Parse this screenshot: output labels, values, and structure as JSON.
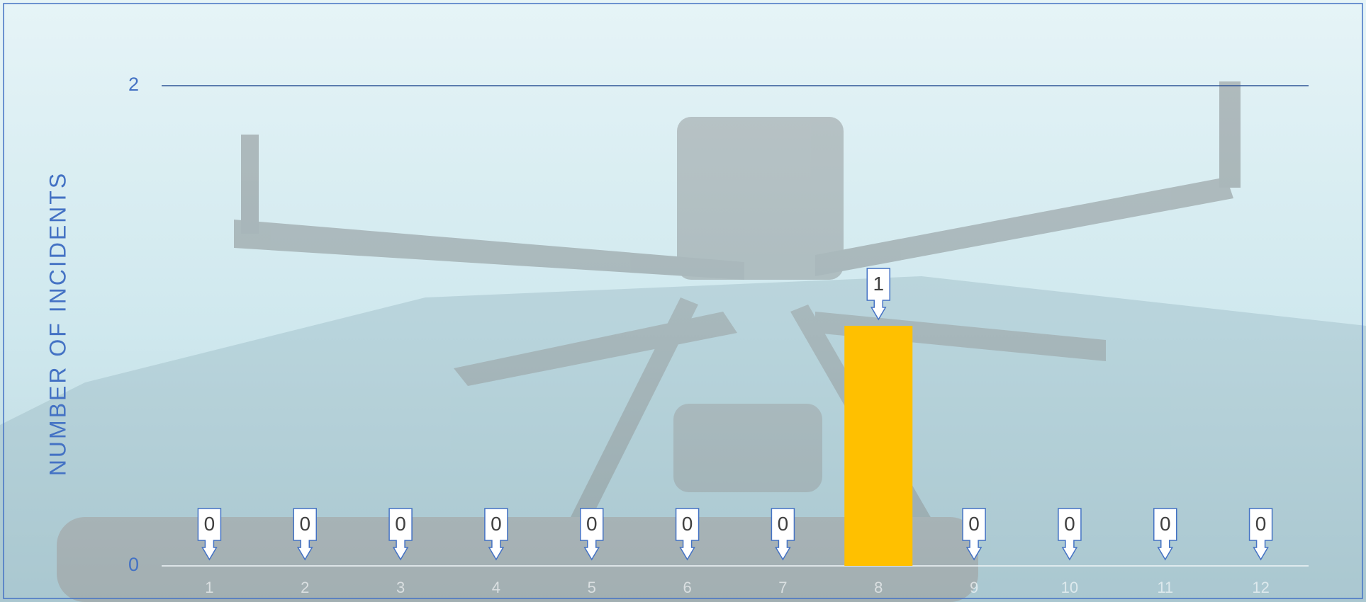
{
  "chart_data": {
    "type": "bar",
    "categories": [
      "1",
      "2",
      "3",
      "4",
      "5",
      "6",
      "7",
      "8",
      "9",
      "10",
      "11",
      "12"
    ],
    "values": [
      0,
      0,
      0,
      0,
      0,
      0,
      0,
      1,
      0,
      0,
      0,
      0
    ],
    "color": "#ffc000",
    "y_label": "NUMBER OF INCIDENTS",
    "ylim": [
      0,
      2
    ],
    "yticks": [
      0,
      2
    ],
    "grid": true
  }
}
